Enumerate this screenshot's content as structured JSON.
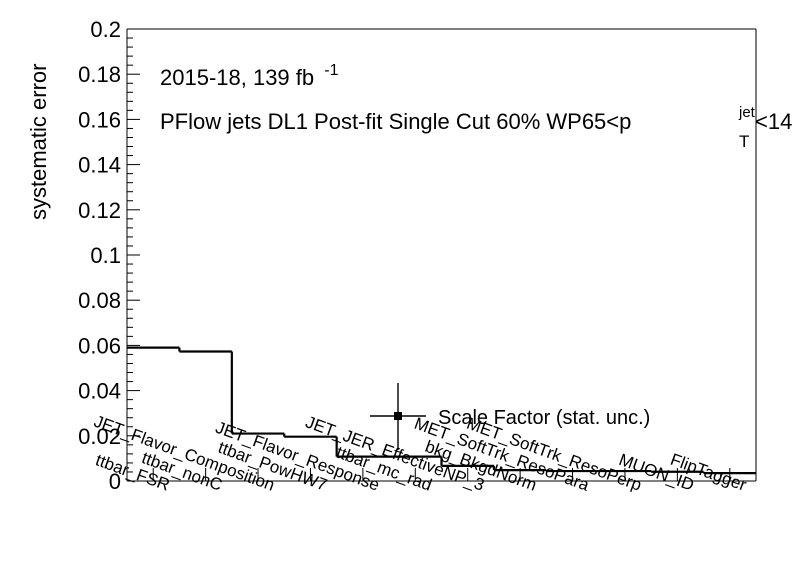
{
  "chart_data": {
    "type": "bar",
    "ylabel": "systematic error",
    "ylim": [
      0,
      0.2
    ],
    "y_ticks": [
      "0",
      "0.02",
      "0.04",
      "0.06",
      "0.08",
      "0.1",
      "0.12",
      "0.14",
      "0.16",
      "0.18",
      "0.2"
    ],
    "categories": [
      "ttbar_FSR",
      "ttbar_nonC",
      "JET_Flavor_Composition",
      "ttbar_PowHW7",
      "JET_Flavor_Response",
      "ttbar_mc_rad",
      "JET_JER_EffectiveNP_3",
      "bkg_BkgdNorm",
      "MET_SoftTrk_ResoPara",
      "MET_SoftTrk_ResoPerp",
      "MUON_ID",
      "FlipTagger"
    ],
    "values": [
      0.059,
      0.0573,
      0.021,
      0.0196,
      0.0108,
      0.0108,
      0.0067,
      0.0048,
      0.0044,
      0.0044,
      0.0041,
      0.0035
    ],
    "annotations": {
      "line1_main": "2015-18, 139 fb",
      "line1_sup": "-1",
      "line2_main": "PFlow jets DL1 Post-fit Single Cut 60% WP65<p",
      "line2_sup": "jet",
      "line2_sub": "T",
      "line2_tail": "<14"
    },
    "legend": {
      "label": "Scale Factor (stat. unc.)",
      "placement": "lower-right"
    }
  }
}
